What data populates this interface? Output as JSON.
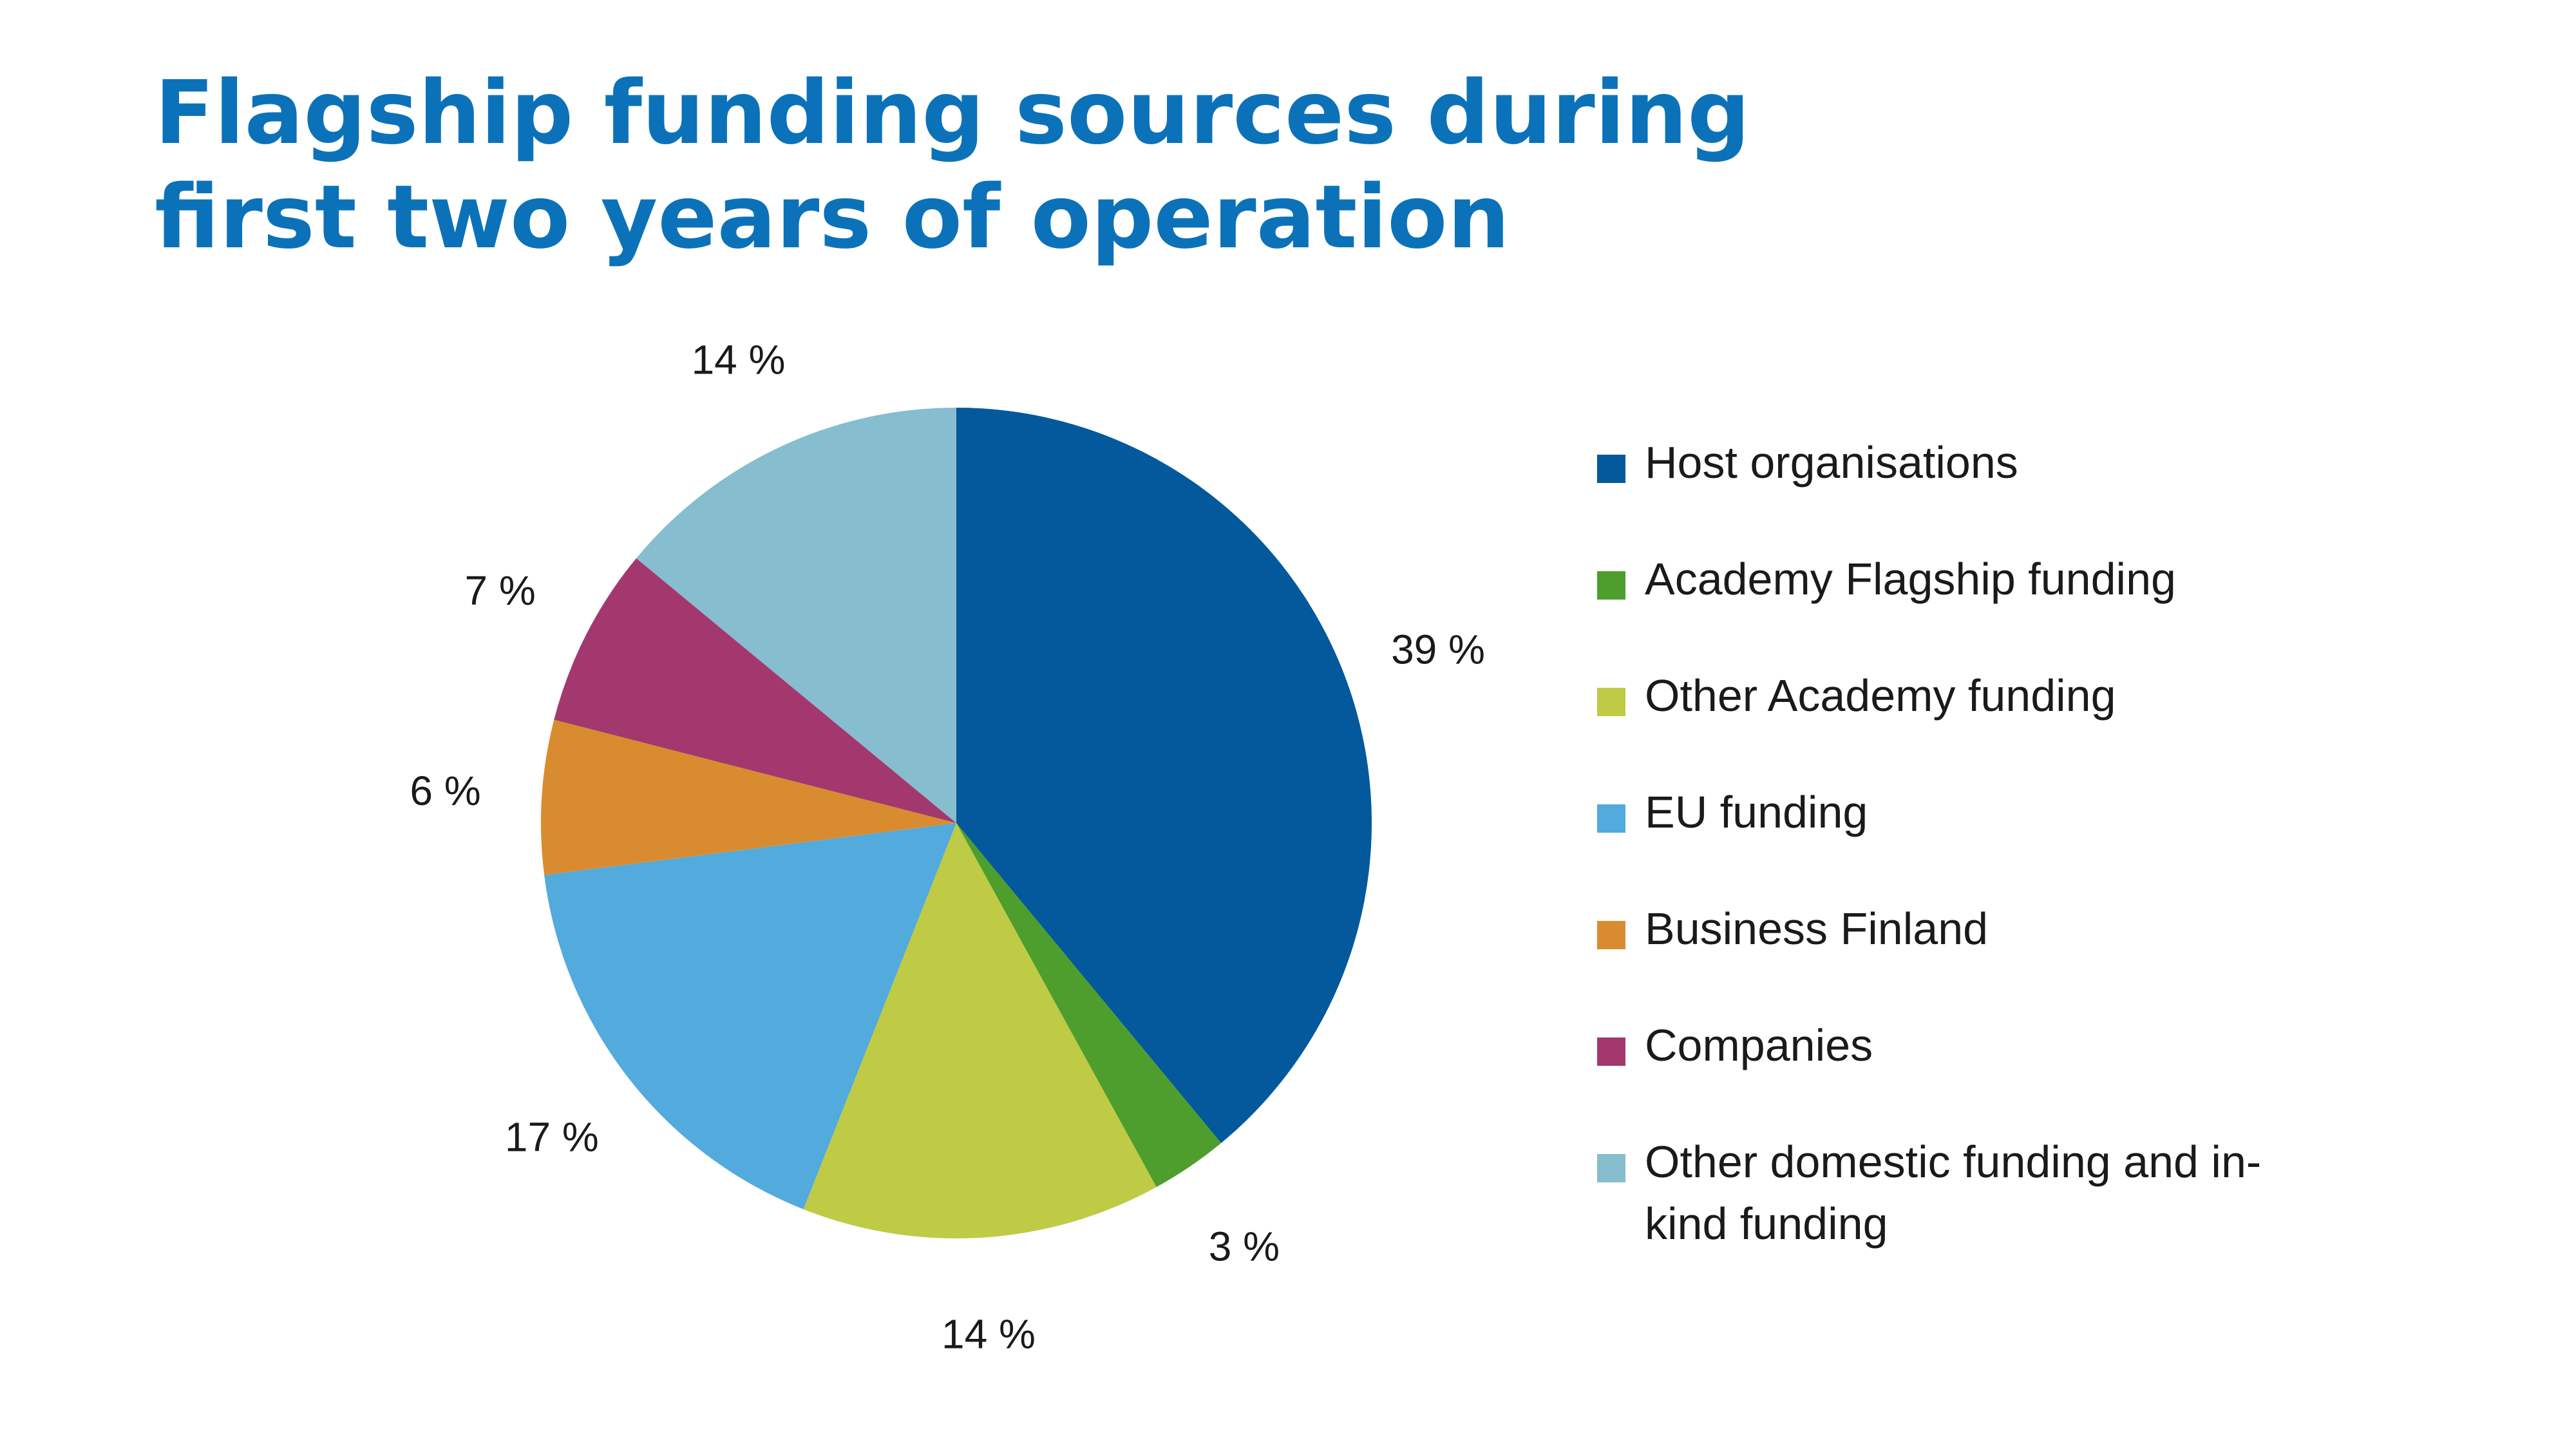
{
  "chart_data": {
    "type": "pie",
    "title_lines": [
      "Flagship funding sources during",
      "first two years of operation"
    ],
    "categories": [
      "Host organisations",
      "Academy Flagship funding",
      "Other Academy funding",
      "EU funding",
      "Business Finland",
      "Companies",
      "Other domestic funding and in-kind funding"
    ],
    "values": [
      39,
      3,
      14,
      17,
      6,
      7,
      14
    ],
    "labels": [
      "39 %",
      "3 %",
      "14 %",
      "17 %",
      "6 %",
      "7 %",
      "14 %"
    ],
    "colors": [
      "#03599b",
      "#4e9e2e",
      "#bfca45",
      "#52aadd",
      "#d98c2f",
      "#a3386f",
      "#86bdcf"
    ],
    "legend_position": "right"
  }
}
